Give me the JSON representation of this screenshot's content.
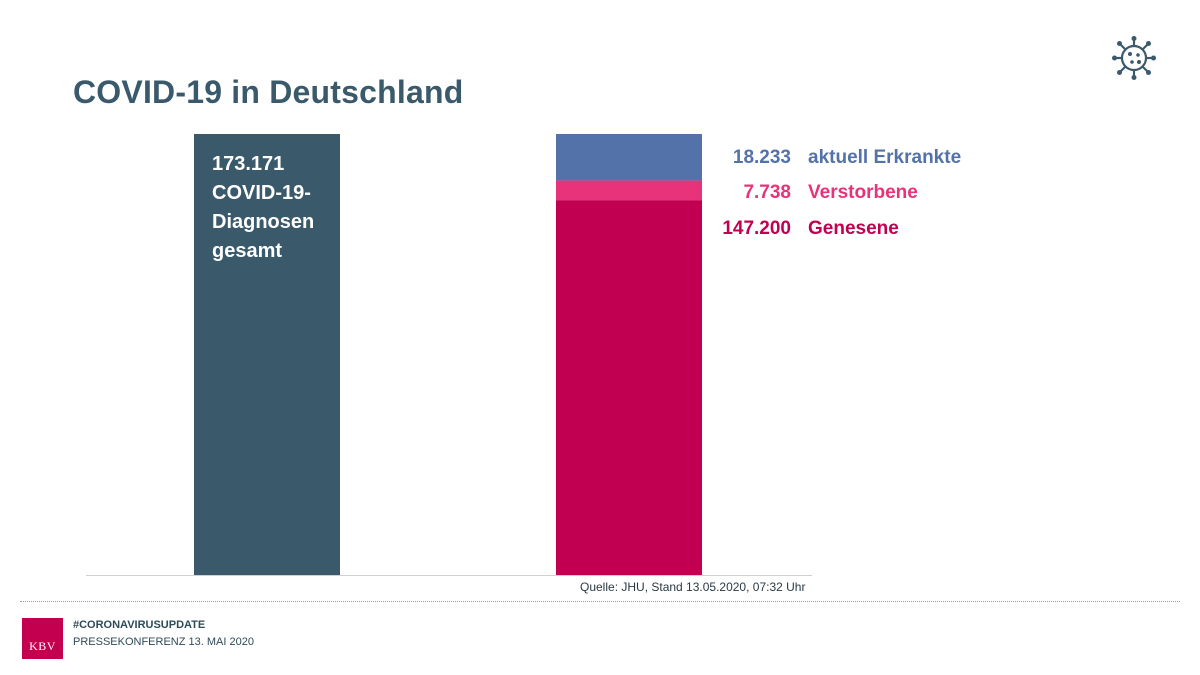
{
  "title": "COVID-19 in Deutschland",
  "icon": "coronavirus-icon",
  "chart_data": {
    "type": "bar",
    "stacked": true,
    "bars": [
      {
        "name": "total",
        "value_label": "173.171",
        "label_lines": [
          "COVID-19-",
          "Diagnosen",
          "gesamt"
        ],
        "segments": [
          {
            "name": "Diagnosen gesamt",
            "value": 173171,
            "color": "#3a5a6b"
          }
        ]
      },
      {
        "name": "breakdown",
        "segments": [
          {
            "name": "Genesene",
            "value": 147200,
            "value_label": "147.200",
            "label": "Genesene",
            "color": "#c20052"
          },
          {
            "name": "Verstorbene",
            "value": 7738,
            "value_label": "7.738",
            "label": "Verstorbene",
            "color": "#e8337a"
          },
          {
            "name": "aktuell Erkrankte",
            "value": 18233,
            "value_label": "18.233",
            "label": "aktuell Erkrankte",
            "color": "#5472aa"
          }
        ]
      }
    ],
    "ylim": [
      0,
      173171
    ]
  },
  "source": "Quelle: JHU, Stand 13.05.2020,  07:32  Uhr",
  "footer": {
    "hashtag": "#CORONAVIRUSUPDATE",
    "press": "PRESSEKONFERENZ 13. MAI 2020",
    "logo": "KBV"
  },
  "colors": {
    "title": "#3a5a6b",
    "brand": "#c3004f"
  }
}
